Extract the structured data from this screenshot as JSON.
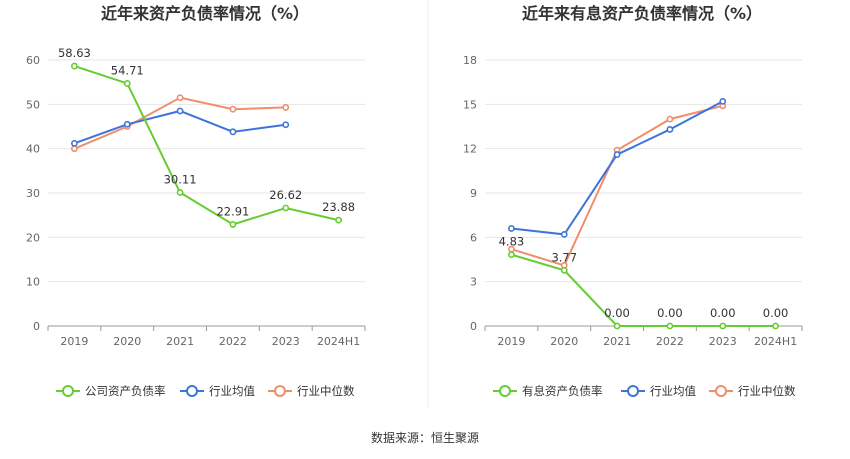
{
  "source_text": "数据来源：恒生聚源",
  "colors": {
    "company": "#66cc33",
    "industry_avg": "#3d74d9",
    "industry_median": "#f08d6c",
    "grid": "#e6e6e6",
    "axis": "#999999"
  },
  "chart_data": [
    {
      "type": "line",
      "title": "近年来资产负债率情况（%）",
      "categories": [
        "2019",
        "2020",
        "2021",
        "2022",
        "2023",
        "2024H1"
      ],
      "ylim": [
        0,
        60
      ],
      "yticks": [
        0,
        10,
        20,
        30,
        40,
        50,
        60
      ],
      "grid": true,
      "legend_position": "bottom",
      "series": [
        {
          "name": "公司资产负债率",
          "color": "#66cc33",
          "values": [
            58.63,
            54.71,
            30.11,
            22.91,
            26.62,
            23.88
          ],
          "labels": [
            "58.63",
            "54.71",
            "30.11",
            "22.91",
            "26.62",
            "23.88"
          ]
        },
        {
          "name": "行业均值",
          "color": "#3d74d9",
          "values": [
            41.2,
            45.5,
            48.5,
            43.8,
            45.4,
            null
          ]
        },
        {
          "name": "行业中位数",
          "color": "#f08d6c",
          "values": [
            40.0,
            45.0,
            51.5,
            48.9,
            49.3,
            null
          ]
        }
      ]
    },
    {
      "type": "line",
      "title": "近年来有息资产负债率情况（%）",
      "categories": [
        "2019",
        "2020",
        "2021",
        "2022",
        "2023",
        "2024H1"
      ],
      "ylim": [
        0,
        18
      ],
      "yticks": [
        0,
        3,
        6,
        9,
        12,
        15,
        18
      ],
      "grid": true,
      "legend_position": "bottom",
      "series": [
        {
          "name": "有息资产负债率",
          "color": "#66cc33",
          "values": [
            4.83,
            3.77,
            0.0,
            0.0,
            0.0,
            0.0
          ],
          "labels": [
            "4.83",
            "3.77",
            "0.00",
            "0.00",
            "0.00",
            "0.00"
          ]
        },
        {
          "name": "行业均值",
          "color": "#3d74d9",
          "values": [
            6.6,
            6.2,
            11.6,
            13.3,
            15.2,
            null
          ]
        },
        {
          "name": "行业中位数",
          "color": "#f08d6c",
          "values": [
            5.2,
            4.1,
            11.9,
            14.0,
            14.9,
            null
          ]
        }
      ]
    }
  ]
}
